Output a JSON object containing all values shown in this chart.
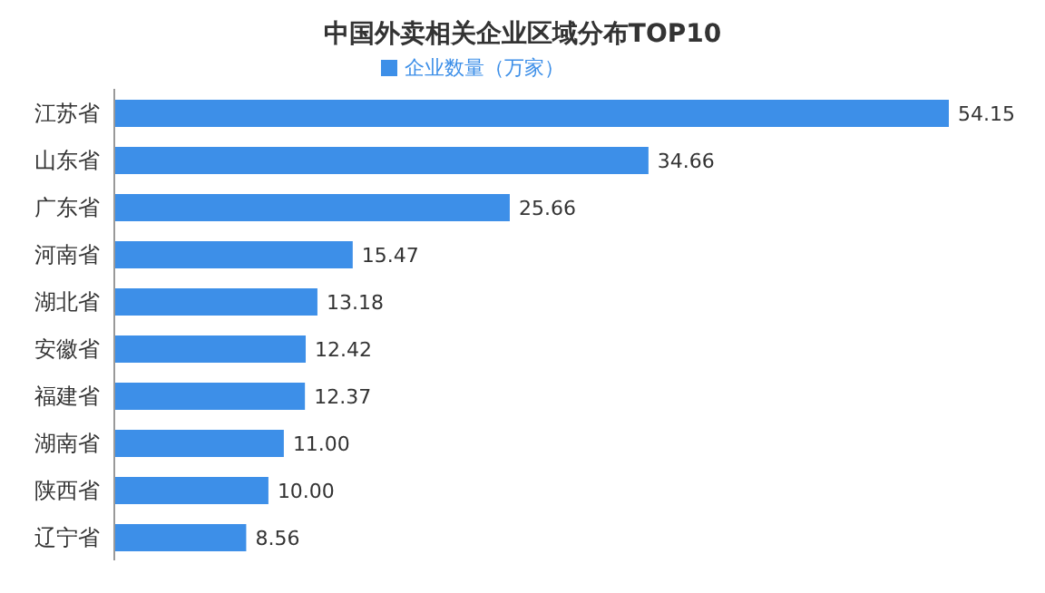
{
  "chart_data": {
    "type": "bar",
    "orientation": "horizontal",
    "title": "中国外卖相关企业区域分布TOP10",
    "categories": [
      "江苏省",
      "山东省",
      "广东省",
      "河南省",
      "湖北省",
      "安徽省",
      "福建省",
      "湖南省",
      "陕西省",
      "辽宁省"
    ],
    "series": [
      {
        "name": "企业数量（万家）",
        "color": "#3d8fe8",
        "values": [
          54.15,
          34.66,
          25.66,
          15.47,
          13.18,
          12.42,
          12.37,
          11.0,
          10.0,
          8.56
        ],
        "value_labels": [
          "54.15",
          "34.66",
          "25.66",
          "15.47",
          "13.18",
          "12.42",
          "12.37",
          "11.00",
          "10.00",
          "8.56"
        ]
      }
    ],
    "legend": "top"
  }
}
